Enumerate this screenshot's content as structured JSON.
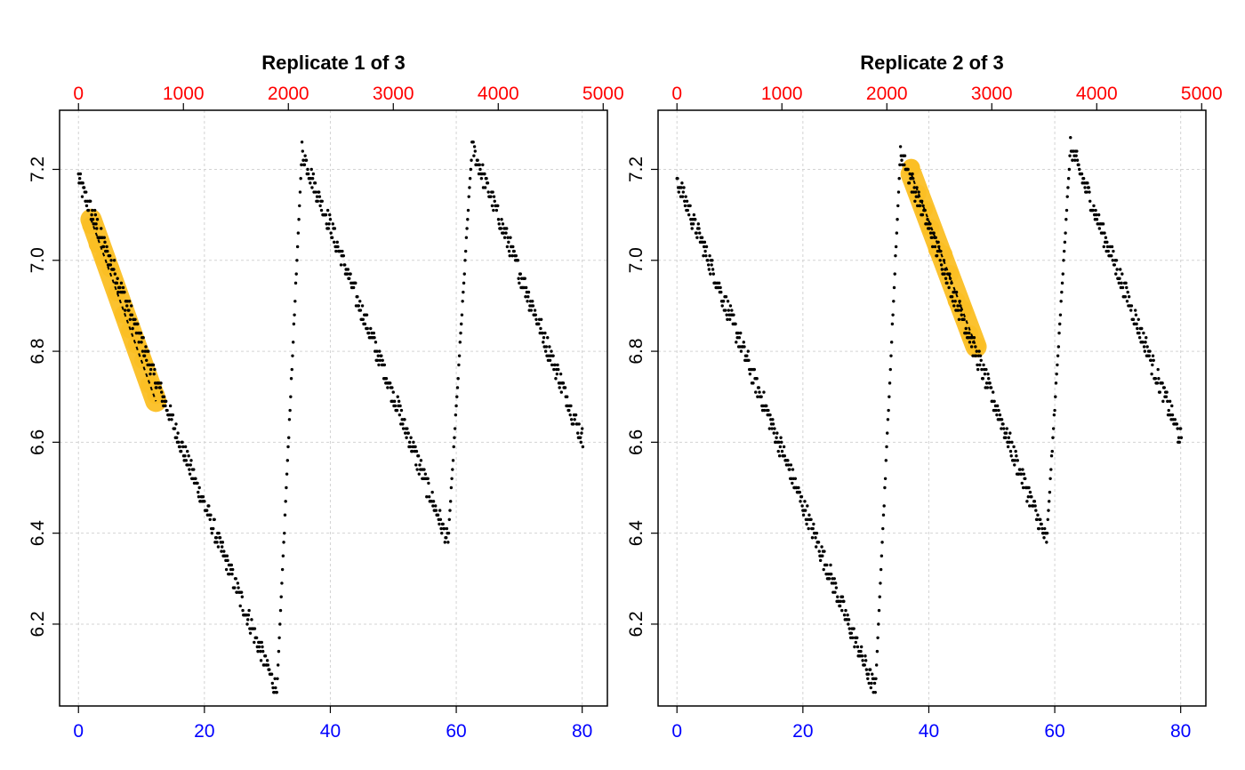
{
  "colors": {
    "points": "#000000",
    "highlight": "#FBBF24",
    "fit_line": "#000000",
    "top_axis": "#FF0000",
    "bottom_axis": "#0000FF",
    "grid": "#D3D3D3"
  },
  "chart_data": [
    {
      "type": "scatter",
      "title": "Replicate 1 of 3",
      "grid": true,
      "x_bottom": {
        "ticks": [
          0,
          20,
          40,
          60,
          80
        ],
        "range": [
          -3,
          84
        ],
        "color": "#0000FF"
      },
      "x_top": {
        "ticks": [
          0,
          1000,
          2000,
          3000,
          4000,
          5000
        ],
        "range": [
          -180,
          5040
        ],
        "color": "#FF0000"
      },
      "y": {
        "ticks": [
          6.2,
          6.4,
          6.6,
          6.8,
          7.0,
          7.2
        ],
        "tick_labels": [
          "6.2",
          "6.4",
          "6.6",
          "6.8",
          "7.0",
          "7.2"
        ],
        "range": [
          6.02,
          7.33
        ]
      },
      "series": [
        {
          "segments": [
            {
              "x_start": 0,
              "x_end": 31.5,
              "y_start": 7.18,
              "y_end": 6.05
            },
            {
              "x_start": 31.5,
              "x_end": 35.5,
              "y_start": 6.05,
              "y_end": 7.24
            },
            {
              "x_start": 35.5,
              "x_end": 58.7,
              "y_start": 7.24,
              "y_end": 6.38
            },
            {
              "x_start": 58.7,
              "x_end": 62.5,
              "y_start": 6.38,
              "y_end": 7.25
            },
            {
              "x_start": 62.5,
              "x_end": 80.2,
              "y_start": 7.25,
              "y_end": 6.6
            }
          ]
        }
      ],
      "highlight": {
        "x_start": 2,
        "x_end": 12.3,
        "y_start": 7.09,
        "y_end": 6.69
      }
    },
    {
      "type": "scatter",
      "title": "Replicate 2 of 3",
      "grid": true,
      "x_bottom": {
        "ticks": [
          0,
          20,
          40,
          60,
          80
        ],
        "range": [
          -3,
          84
        ],
        "color": "#0000FF"
      },
      "x_top": {
        "ticks": [
          0,
          1000,
          2000,
          3000,
          4000,
          5000
        ],
        "range": [
          -180,
          5040
        ],
        "color": "#FF0000"
      },
      "y": {
        "ticks": [
          6.2,
          6.4,
          6.6,
          6.8,
          7.0,
          7.2
        ],
        "tick_labels": [
          "6.2",
          "6.4",
          "6.6",
          "6.8",
          "7.0",
          "7.2"
        ],
        "range": [
          6.02,
          7.33
        ]
      },
      "series": [
        {
          "segments": [
            {
              "x_start": 0,
              "x_end": 31.5,
              "y_start": 7.18,
              "y_end": 6.05
            },
            {
              "x_start": 31.5,
              "x_end": 35.5,
              "y_start": 6.05,
              "y_end": 7.24
            },
            {
              "x_start": 35.5,
              "x_end": 58.7,
              "y_start": 7.24,
              "y_end": 6.38
            },
            {
              "x_start": 58.7,
              "x_end": 62.5,
              "y_start": 6.38,
              "y_end": 7.25
            },
            {
              "x_start": 62.5,
              "x_end": 80.2,
              "y_start": 7.25,
              "y_end": 6.6
            }
          ]
        }
      ],
      "highlight": {
        "x_start": 37.2,
        "x_end": 47.5,
        "y_start": 7.19,
        "y_end": 6.81
      }
    }
  ]
}
